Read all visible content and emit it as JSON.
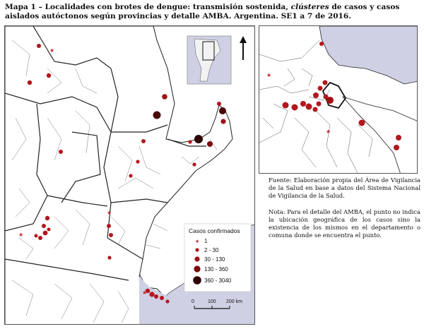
{
  "title": {
    "part1": "Mapa 1 – Localidades con brotes de dengue: transmisión sostenida, ",
    "italic": "clústeres",
    "part2": " de casos y casos aislados autóctonos según provincias y detalle AMBA. Argentina. SE1 a 7 de 2016."
  },
  "legend": {
    "title": "Casos confirmados",
    "items": [
      {
        "label": "1",
        "symbol": "star",
        "color": "#c0282d"
      },
      {
        "label": "2 - 30",
        "symbol": "circle",
        "color": "#b3161c"
      },
      {
        "label": "30 - 130",
        "symbol": "circle",
        "color": "#a01014"
      },
      {
        "label": "130 - 360",
        "symbol": "circle",
        "color": "#7a0a0c"
      },
      {
        "label": "360 - 3040",
        "symbol": "circle",
        "color": "#2e0505"
      }
    ]
  },
  "scale_bar": {
    "labels": [
      "0",
      "100",
      "200 km"
    ]
  },
  "source_text": "Fuente: Elaboración propia del Área de Vigilancia de la Salud en base a datos del Sistema Nacional de Vigilancia de la Salud.",
  "note_text": "Nota: Para el detalle del AMBA, el punto no indica la ubicación geográfica de los casos sino la existencia de los mismos en el departamento o comuna donde se encuentra el punto.",
  "colors": {
    "water": "#cfd0e4",
    "land": "#ffffff",
    "neighbor_land": "#ececec",
    "border": "#222222",
    "dot": "#b3161c"
  },
  "icons": [
    "north-arrow-icon",
    "locator-map-icon"
  ]
}
